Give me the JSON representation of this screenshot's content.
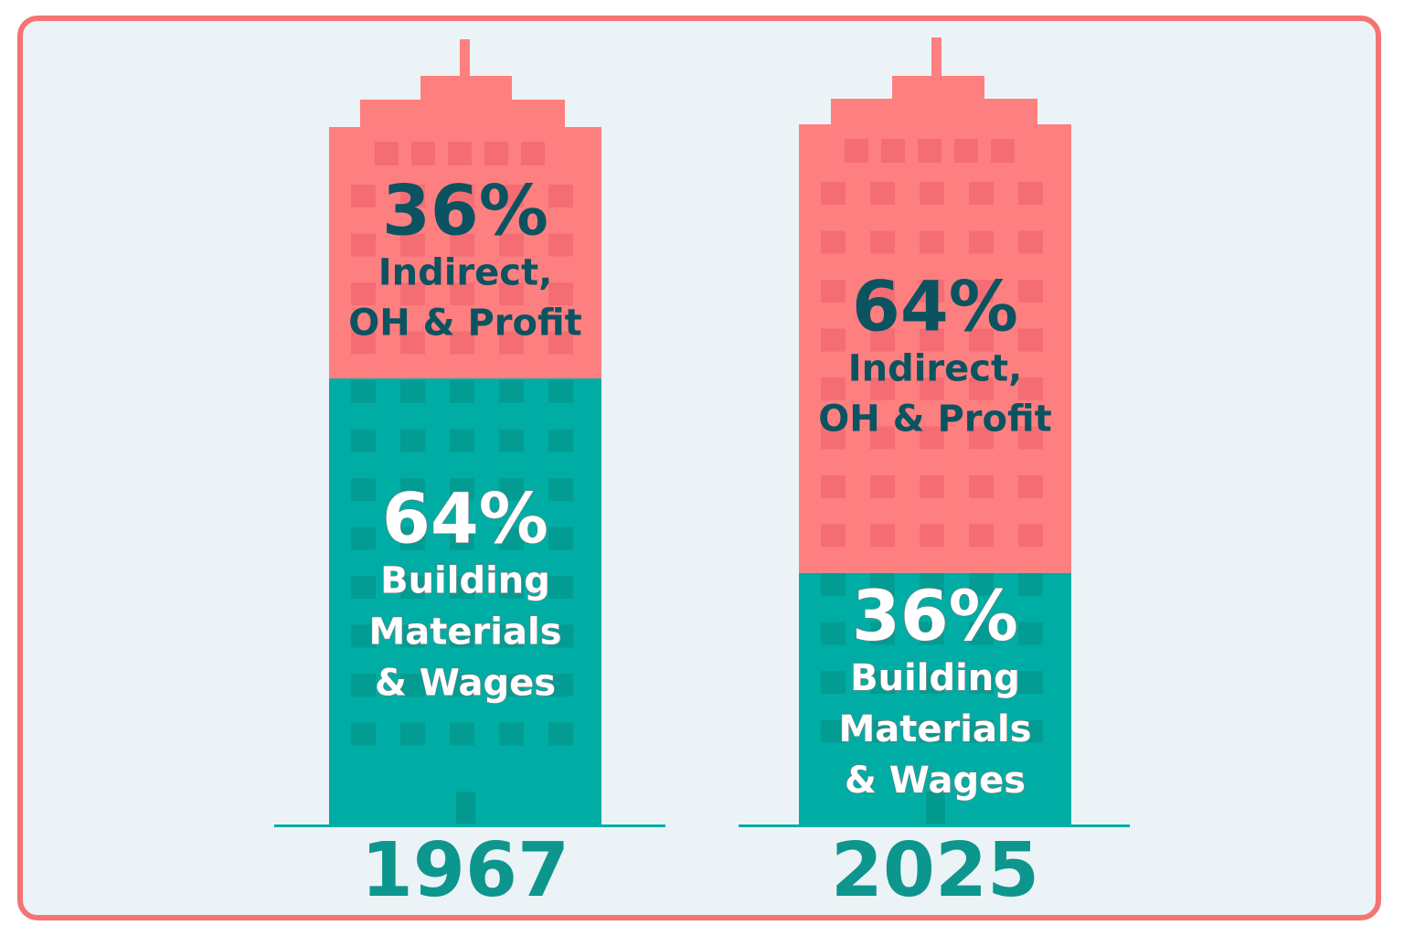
{
  "chart_data": {
    "type": "bar",
    "stacked": true,
    "categories": [
      "1967",
      "2025"
    ],
    "series": [
      {
        "name": "Building Materials & Wages",
        "label_lines": [
          "Building",
          "Materials",
          "& Wages"
        ],
        "values": [
          64,
          36
        ]
      },
      {
        "name": "Indirect, OH & Profit",
        "label_lines": [
          "Indirect,",
          "OH & Profit"
        ],
        "values": [
          36,
          64
        ]
      }
    ],
    "value_labels": [
      {
        "category": "1967",
        "series_0": "64%",
        "series_1": "36%"
      },
      {
        "category": "2025",
        "series_0": "36%",
        "series_1": "64%"
      }
    ],
    "ylim": [
      0,
      100
    ],
    "grid": false,
    "legend": "none"
  },
  "colors": {
    "indirect": "#fe7f7f",
    "indirect_window": "#f26a72",
    "materials": "#00ada5",
    "materials_window": "#02998f",
    "dark_text": "#0b5361",
    "light_text": "#ffffff",
    "year_text": "#0d968d",
    "frame_border": "#f47474",
    "background": "#ecf3f6"
  }
}
